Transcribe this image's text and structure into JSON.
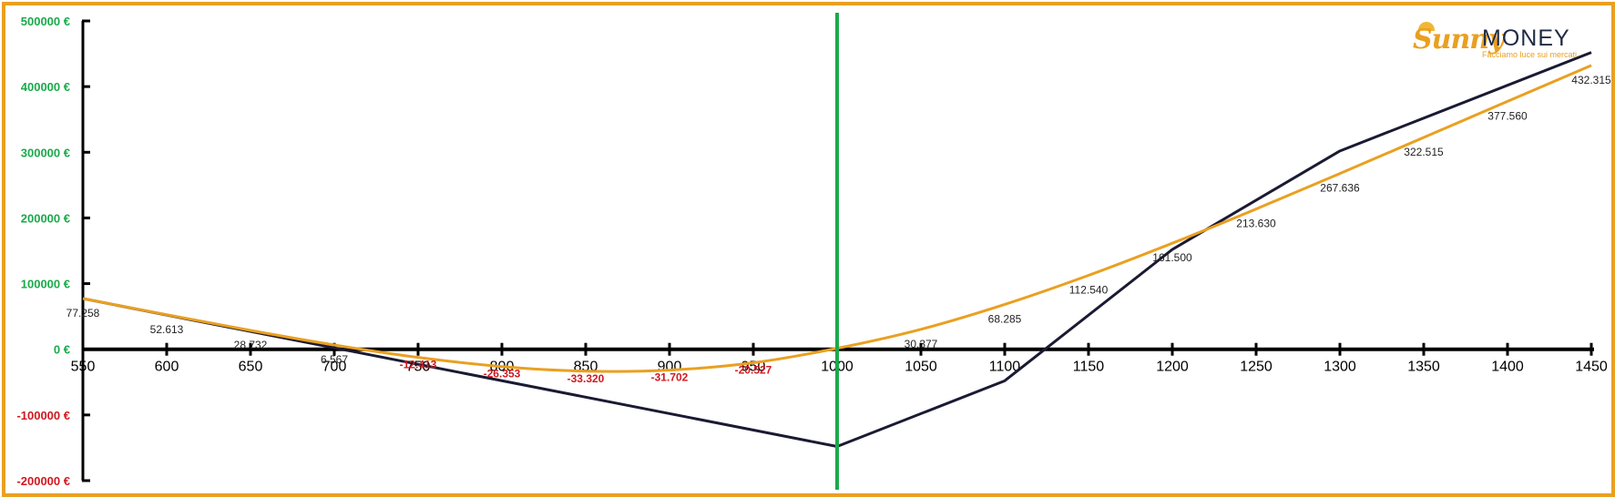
{
  "logo": {
    "brand_part1": "Sunny",
    "brand_part2": "MONEY",
    "tagline": "Facciamo luce sui mercati"
  },
  "colors": {
    "frame": "#e9a021",
    "black_line": "#1a1a33",
    "orange_line": "#e9a021",
    "vertical_marker": "#1aaa4a",
    "positive_tick": "#1aaa4a",
    "negative_tick": "#d0191f",
    "positive_label": "#222222",
    "negative_label": "#d0191f"
  },
  "chart_data": {
    "type": "line",
    "title": "",
    "xlabel": "",
    "ylabel": "",
    "xlim": [
      550,
      1450
    ],
    "ylim": [
      -200000,
      500000
    ],
    "x_ticks": [
      550,
      600,
      650,
      700,
      750,
      800,
      850,
      900,
      950,
      1000,
      1050,
      1100,
      1150,
      1200,
      1250,
      1300,
      1350,
      1400,
      1450
    ],
    "y_ticks": [
      {
        "value": 500000,
        "label": "500000 €"
      },
      {
        "value": 400000,
        "label": "400000 €"
      },
      {
        "value": 300000,
        "label": "300000 €"
      },
      {
        "value": 200000,
        "label": "200000 €"
      },
      {
        "value": 100000,
        "label": "100000 €"
      },
      {
        "value": 0,
        "label": "0 €"
      },
      {
        "value": -100000,
        "label": "-100000 €"
      },
      {
        "value": -200000,
        "label": "-200000 €"
      }
    ],
    "vertical_marker_x": 1000,
    "series": [
      {
        "color": "#1a1a33",
        "x": [
          550,
          1000,
          1100,
          1200,
          1300,
          1450
        ],
        "y": [
          77258,
          -148000,
          -48000,
          152000,
          302000,
          452000
        ]
      },
      {
        "color": "#e9a021",
        "x": [
          550,
          600,
          650,
          700,
          750,
          800,
          850,
          900,
          950,
          1000,
          1050,
          1100,
          1150,
          1200,
          1250,
          1300,
          1350,
          1400,
          1450
        ],
        "y": [
          77258,
          52613,
          28732,
          6567,
          -12413,
          -26353,
          -33320,
          -31702,
          -20527,
          1500,
          30377,
          68285,
          112540,
          161500,
          213630,
          267636,
          322515,
          377560,
          432315
        ],
        "data_labels": [
          "77.258",
          "52.613",
          "28.732",
          "6.567",
          "-12.413",
          "-26.353",
          "-33.320",
          "-31.702",
          "-20.527",
          "",
          "30.377",
          "68.285",
          "112.540",
          "161.500",
          "213.630",
          "267.636",
          "322.515",
          "377.560",
          "432.315"
        ]
      }
    ]
  }
}
